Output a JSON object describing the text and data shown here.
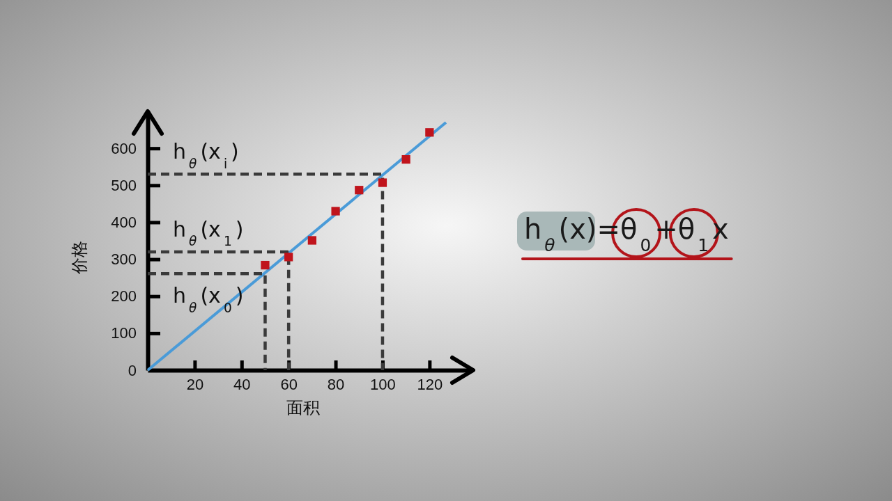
{
  "chart_data": {
    "type": "scatter",
    "xlabel": "面积",
    "ylabel": "价格",
    "xlim": [
      0,
      138
    ],
    "ylim": [
      0,
      700
    ],
    "xticks": [
      20,
      40,
      60,
      80,
      100,
      120
    ],
    "yticks": [
      0,
      100,
      200,
      300,
      400,
      500,
      600
    ],
    "grid": false,
    "marker": "square",
    "series": [
      {
        "type": "scatter",
        "color": "#c0141c",
        "x": [
          50,
          60,
          70,
          80,
          90,
          100,
          110,
          120
        ],
        "values": [
          284,
          306,
          351,
          430,
          487,
          507,
          570,
          643
        ]
      },
      {
        "type": "line",
        "color": "#4a9bd8",
        "marker": "none",
        "line_style": "solid",
        "x": [
          0,
          127
        ],
        "values": [
          0,
          670
        ]
      },
      {
        "type": "line",
        "color": "#3a3a3a",
        "marker": "none",
        "line_style": "dashed",
        "x": [
          0,
          50,
          50
        ],
        "values": [
          261,
          261,
          0
        ]
      },
      {
        "type": "line",
        "color": "#3a3a3a",
        "marker": "none",
        "line_style": "dashed",
        "x": [
          0,
          60,
          60
        ],
        "values": [
          320,
          320,
          0
        ]
      },
      {
        "type": "line",
        "color": "#3a3a3a",
        "marker": "none",
        "line_style": "dashed",
        "x": [
          0,
          100,
          100
        ],
        "values": [
          530,
          530,
          0
        ]
      }
    ],
    "annotations": [
      "h$_{θ}$(x$_{0}$)",
      "h$_{θ}$(x$_{1}$)",
      "h$_{θ}$(x$_{i}$)",
      "h$_{θ}$(x)=θ$_{0}$+θ$_{1}$x"
    ]
  }
}
